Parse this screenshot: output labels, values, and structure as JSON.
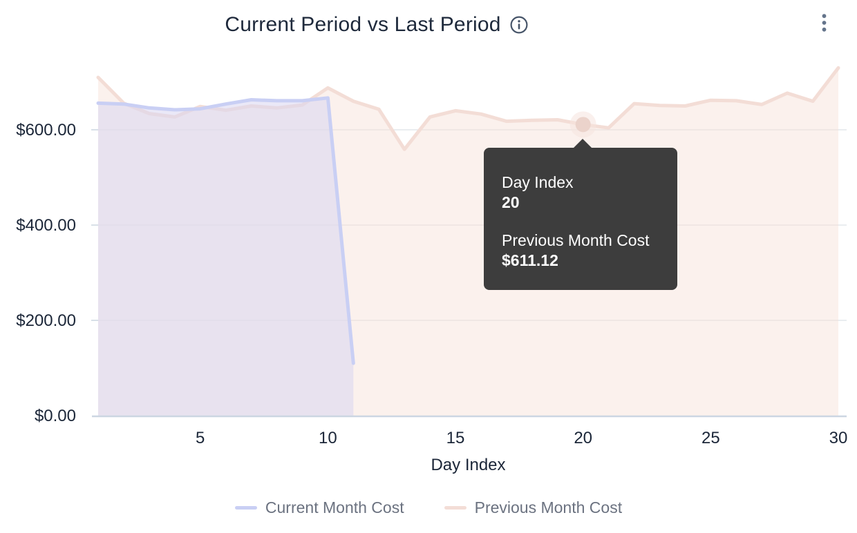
{
  "header": {
    "title": "Current Period vs Last Period"
  },
  "chart_data": {
    "type": "area",
    "title": "Current Period vs Last Period",
    "xlabel": "Day Index",
    "ylabel": "",
    "x": [
      1,
      2,
      3,
      4,
      5,
      6,
      7,
      8,
      9,
      10,
      11,
      12,
      13,
      14,
      15,
      16,
      17,
      18,
      19,
      20,
      21,
      22,
      23,
      24,
      25,
      26,
      27,
      28,
      29,
      30
    ],
    "series": [
      {
        "name": "Current Month Cost",
        "color": "#c9cff4",
        "fill": "rgba(216,214,241,0.55)",
        "values": [
          656,
          654,
          646,
          642,
          644,
          654,
          663,
          661,
          661,
          667,
          110
        ]
      },
      {
        "name": "Previous Month Cost",
        "color": "#f3ddd6",
        "fill": "rgba(247,224,216,0.45)",
        "values": [
          710,
          656,
          634,
          627,
          649,
          641,
          650,
          646,
          652,
          688,
          660,
          643,
          559,
          627,
          640,
          633,
          618,
          620,
          621,
          611.12,
          604,
          655,
          651,
          650,
          662,
          661,
          653,
          677,
          660,
          730
        ]
      }
    ],
    "y_ticks": [
      "$0.00",
      "$200.00",
      "$400.00",
      "$600.00"
    ],
    "y_tick_values": [
      0,
      200,
      400,
      600
    ],
    "x_ticks": [
      5,
      10,
      15,
      20,
      25,
      30
    ],
    "xlim": [
      1,
      30
    ],
    "ylim": [
      0,
      750
    ],
    "grid": true,
    "legend_position": "bottom",
    "highlighted_point": {
      "series": "Previous Month Cost",
      "x": 20,
      "y": 611.12
    }
  },
  "tooltip": {
    "rows": [
      {
        "label": "Day Index",
        "value": "20"
      },
      {
        "label": "Previous Month Cost",
        "value": "$611.12"
      }
    ]
  },
  "colors": {
    "title_text": "#1e293b",
    "axis_text": "#1b2638",
    "legend_text": "#6b7280",
    "gridline": "#e4e7ec",
    "axis_line": "#ccd6e2",
    "tooltip_bg": "#3d3d3d",
    "highlight_dot": "#ebd3cb",
    "highlight_halo": "rgba(246,228,222,0.55)"
  }
}
